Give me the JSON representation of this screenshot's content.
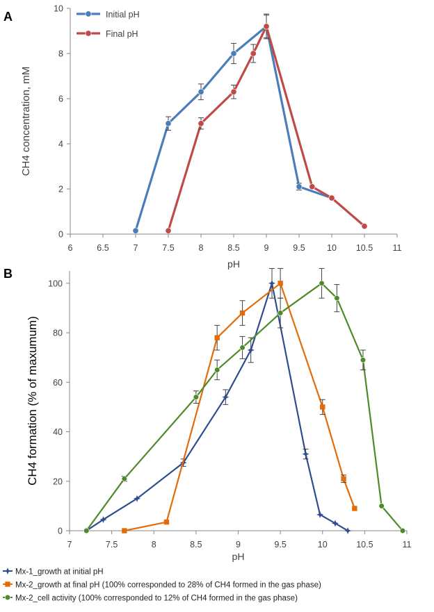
{
  "chart_data": [
    {
      "panel": "A",
      "type": "line",
      "xlabel": "pH",
      "ylabel": "CH4 concentration, mM",
      "xlim": [
        6,
        11
      ],
      "ylim": [
        0,
        10
      ],
      "xticks": [
        "6",
        "6.5",
        "7",
        "7.5",
        "8",
        "8.5",
        "9",
        "9.5",
        "10",
        "10.5",
        "11"
      ],
      "yticks": [
        "0",
        "2",
        "4",
        "6",
        "8",
        "10"
      ],
      "legend_position": "top-left",
      "series": [
        {
          "name": "Initial pH",
          "color": "#4a7ebb",
          "x": [
            7,
            7.5,
            8,
            8.5,
            9,
            9.5,
            10
          ],
          "y": [
            0.15,
            4.9,
            6.3,
            8.0,
            9.2,
            2.1,
            1.6
          ],
          "err": [
            0,
            0.3,
            0.35,
            0.45,
            0.5,
            0.15,
            0
          ]
        },
        {
          "name": "Final pH",
          "color": "#be4b48",
          "x": [
            7.5,
            8,
            8.5,
            8.8,
            9,
            9.7,
            10,
            10.5
          ],
          "y": [
            0.15,
            4.9,
            6.3,
            8.0,
            9.2,
            2.1,
            1.6,
            0.35
          ],
          "err": [
            0,
            0.25,
            0.3,
            0.4,
            0.55,
            0,
            0,
            0
          ]
        }
      ]
    },
    {
      "panel": "B",
      "type": "line",
      "xlabel": "pH",
      "ylabel": "CH4 formation (% of maxumum)",
      "xlim": [
        7,
        11
      ],
      "ylim": [
        0,
        105
      ],
      "xticks": [
        "7",
        "7.5",
        "8",
        "8.5",
        "9",
        "9.5",
        "10",
        "10.5",
        "11"
      ],
      "yticks": [
        "0",
        "20",
        "40",
        "60",
        "80",
        "100"
      ],
      "legend_position": "bottom",
      "series": [
        {
          "name": "Mx-1_growth at initial pH",
          "color": "#2e4d8f",
          "marker": "star",
          "x": [
            7.2,
            7.4,
            7.8,
            8.35,
            8.85,
            9.15,
            9.4,
            9.8,
            9.97,
            10.15,
            10.3
          ],
          "y": [
            0,
            4.5,
            13,
            27.5,
            54,
            73,
            100,
            31,
            6.5,
            3,
            0
          ],
          "err": [
            0,
            0,
            0,
            1.5,
            3,
            5,
            6,
            2,
            0,
            0,
            0
          ]
        },
        {
          "name": "Mx-2_growth at final pH (100% corresponded to 28% of CH4 formed in the gas phase)",
          "color": "#e36c09",
          "marker": "square",
          "x": [
            7.65,
            8.15,
            8.75,
            9.05,
            9.5,
            10.0,
            10.25,
            10.38
          ],
          "y": [
            0,
            3.5,
            78,
            88,
            100,
            50,
            21,
            9
          ],
          "err": [
            0,
            0,
            5,
            5,
            6,
            3,
            1.5,
            0
          ]
        },
        {
          "name": "Mx-2_cell activity (100% corresponded to 12% of CH4 formed in the gas phase)",
          "color": "#4f8a2a",
          "marker": "circle",
          "x": [
            7.2,
            7.65,
            8.5,
            8.75,
            9.05,
            9.5,
            9.99,
            10.17,
            10.48,
            10.7,
            10.95
          ],
          "y": [
            0,
            21,
            54,
            65,
            74,
            88,
            100,
            94,
            69,
            10,
            0
          ],
          "err": [
            0,
            1,
            2.5,
            4,
            4.5,
            6,
            6,
            5.5,
            4,
            0,
            0
          ]
        }
      ]
    }
  ]
}
